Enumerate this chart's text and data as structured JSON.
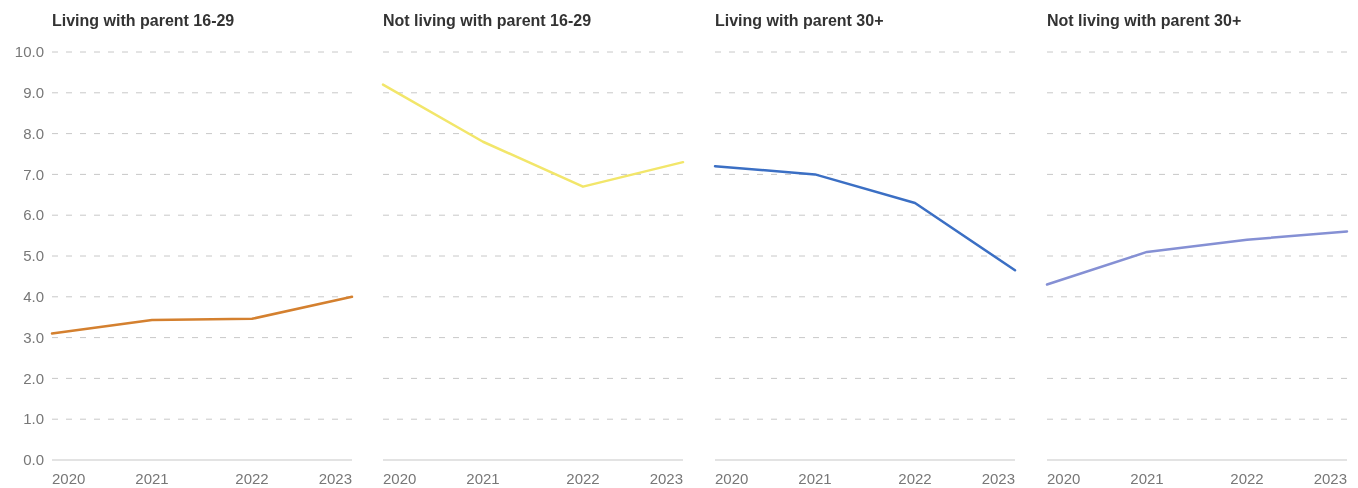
{
  "chart_data": [
    {
      "type": "line",
      "title": "Living with parent 16-29",
      "x": [
        2020,
        2021,
        2022,
        2023
      ],
      "series": [
        {
          "color": "#d4802f",
          "values": [
            3.1,
            3.43,
            3.46,
            4.0
          ]
        }
      ],
      "xlim": [
        2020,
        2023
      ],
      "xticks": [
        2020,
        2021,
        2022,
        2023
      ],
      "ylim": [
        0,
        10
      ],
      "yticks": [
        {
          "value": 0,
          "label": "0.0"
        },
        {
          "value": 1,
          "label": "1.0"
        },
        {
          "value": 2,
          "label": "2.0"
        },
        {
          "value": 3,
          "label": "3.0"
        },
        {
          "value": 4,
          "label": "4.0"
        },
        {
          "value": 5,
          "label": "5.0"
        },
        {
          "value": 6,
          "label": "6.0"
        },
        {
          "value": 7,
          "label": "7.0"
        },
        {
          "value": 8,
          "label": "8.0"
        },
        {
          "value": 9,
          "label": "9.0"
        },
        {
          "value": 10,
          "label": "10.0"
        }
      ],
      "grid": "y",
      "line_style": "solid"
    },
    {
      "type": "line",
      "title": "Not living with parent 16-29",
      "x": [
        2020,
        2021,
        2022,
        2023
      ],
      "series": [
        {
          "color": "#f2e66a",
          "values": [
            9.2,
            7.8,
            6.7,
            7.3
          ]
        }
      ],
      "xlim": [
        2020,
        2023
      ],
      "xticks": [
        2020,
        2021,
        2022,
        2023
      ],
      "ylim": [
        0,
        10
      ],
      "yticks": [
        0,
        1,
        2,
        3,
        4,
        5,
        6,
        7,
        8,
        9,
        10
      ],
      "grid": "y",
      "tick_labels": "x",
      "line_style": "solid"
    },
    {
      "type": "line",
      "title": "Living with parent 30+",
      "x": [
        2020,
        2021,
        2022,
        2023
      ],
      "series": [
        {
          "color": "#3b6fc4",
          "values": [
            7.2,
            7.0,
            6.3,
            4.65
          ]
        }
      ],
      "xlim": [
        2020,
        2023
      ],
      "xticks": [
        2020,
        2021,
        2022,
        2023
      ],
      "ylim": [
        0,
        10
      ],
      "yticks": [
        0,
        1,
        2,
        3,
        4,
        5,
        6,
        7,
        8,
        9,
        10
      ],
      "grid": "y",
      "tick_labels": "x",
      "line_style": "solid"
    },
    {
      "type": "line",
      "title": "Not living with parent 30+",
      "x": [
        2020,
        2021,
        2022,
        2023
      ],
      "series": [
        {
          "color": "#8590d4",
          "values": [
            4.3,
            5.1,
            5.4,
            5.6
          ]
        }
      ],
      "xlim": [
        2020,
        2023
      ],
      "xticks": [
        2020,
        2021,
        2022,
        2023
      ],
      "ylim": [
        0,
        10
      ],
      "yticks": [
        0,
        1,
        2,
        3,
        4,
        5,
        6,
        7,
        8,
        9,
        10
      ],
      "grid": "y",
      "tick_labels": "x",
      "line_style": "solid"
    }
  ]
}
